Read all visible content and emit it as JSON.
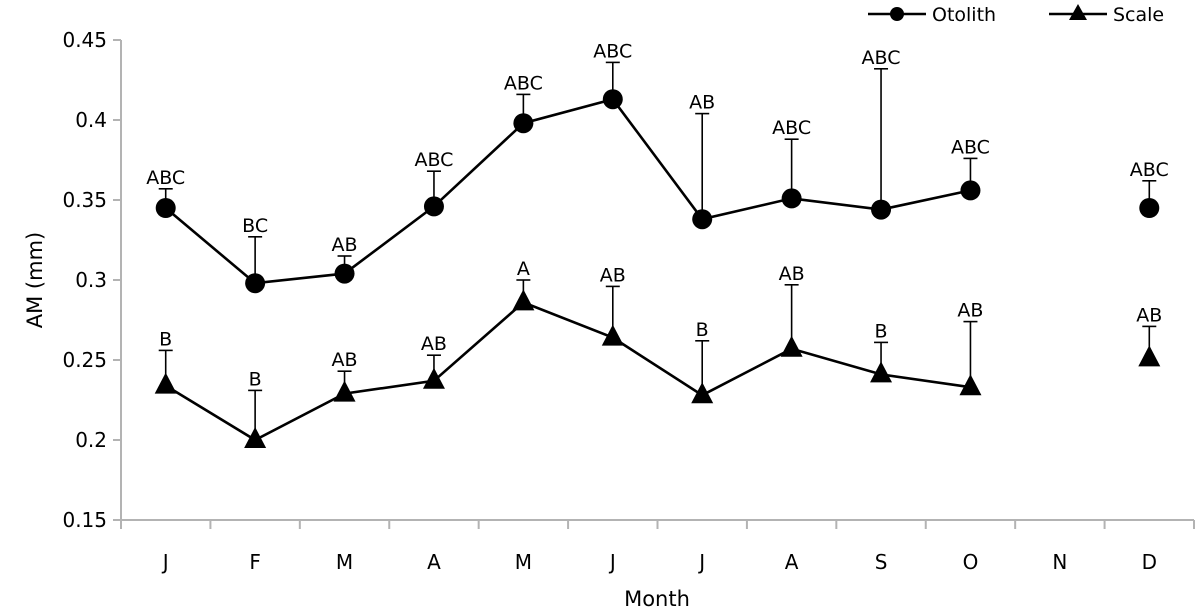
{
  "chart_data": {
    "type": "line",
    "title": "",
    "xlabel": "Month",
    "ylabel": "AM (mm)",
    "ylim": [
      0.15,
      0.45
    ],
    "yticks": [
      "0.15",
      "0.2",
      "0.25",
      "0.3",
      "0.35",
      "0.4",
      "0.45"
    ],
    "grid": false,
    "legend_position": "top-right",
    "categories": [
      "J",
      "F",
      "M",
      "A",
      "M",
      "J",
      "J",
      "A",
      "S",
      "O",
      "N",
      "D"
    ],
    "series": [
      {
        "name": "Otolith",
        "marker": "circle",
        "values": [
          0.345,
          0.298,
          0.304,
          0.346,
          0.398,
          0.413,
          0.338,
          0.351,
          0.344,
          0.356,
          null,
          0.345
        ],
        "error_upper": [
          0.357,
          0.327,
          0.315,
          0.368,
          0.416,
          0.436,
          0.404,
          0.388,
          0.432,
          0.376,
          null,
          0.362
        ],
        "significance_labels": [
          "ABC",
          "BC",
          "AB",
          "ABC",
          "ABC",
          "ABC",
          "AB",
          "ABC",
          "ABC",
          "ABC",
          "",
          "ABC"
        ]
      },
      {
        "name": "Scale",
        "marker": "triangle",
        "values": [
          0.234,
          0.2,
          0.229,
          0.237,
          0.286,
          0.264,
          0.228,
          0.257,
          0.241,
          0.233,
          null,
          0.251
        ],
        "error_upper": [
          0.256,
          0.231,
          0.243,
          0.253,
          0.3,
          0.296,
          0.262,
          0.297,
          0.261,
          0.274,
          null,
          0.271
        ],
        "significance_labels": [
          "B",
          "B",
          "AB",
          "AB",
          "A",
          "AB",
          "B",
          "AB",
          "B",
          "AB",
          "",
          "AB"
        ]
      }
    ]
  },
  "legend": {
    "otolith_label": "Otolith",
    "scale_label": "Scale"
  },
  "colors": {
    "series": "#000000",
    "axis": "#b3b3b3"
  }
}
